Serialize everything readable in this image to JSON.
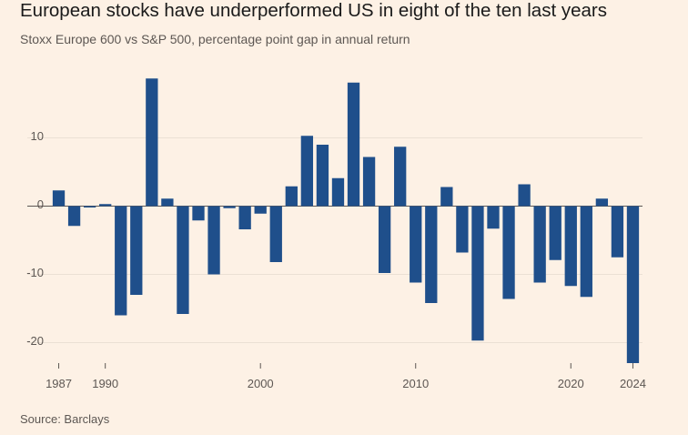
{
  "header": {
    "title": "European stocks have underperformed US in eight of the ten last years",
    "subtitle": "Stoxx Europe 600 vs S&P 500, percentage point gap in annual return"
  },
  "footer": {
    "source": "Source: Barclays"
  },
  "colors": {
    "bar": "#1f4f8b",
    "background": "#fdf1e5",
    "grid": "#ebe0d4",
    "text": "#5d5753"
  },
  "chart_data": {
    "type": "bar",
    "title": "European stocks have underperformed US in eight of the ten last years",
    "subtitle": "Stoxx Europe 600 vs S&P 500, percentage point gap in annual return",
    "xlabel": "",
    "ylabel": "",
    "ylim": [
      -23,
      19
    ],
    "yticks": [
      -20,
      -10,
      0,
      10
    ],
    "xtick_labels": [
      "1987",
      "1990",
      "2000",
      "2010",
      "2020",
      "2024"
    ],
    "grid": true,
    "categories": [
      1987,
      1988,
      1989,
      1990,
      1991,
      1992,
      1993,
      1994,
      1995,
      1996,
      1997,
      1998,
      1999,
      2000,
      2001,
      2002,
      2003,
      2004,
      2005,
      2006,
      2007,
      2008,
      2009,
      2010,
      2011,
      2012,
      2013,
      2014,
      2015,
      2016,
      2017,
      2018,
      2019,
      2020,
      2021,
      2022,
      2023,
      2024
    ],
    "values": [
      2.3,
      -2.9,
      -0.2,
      0.3,
      -16,
      -13,
      18.7,
      1.1,
      -15.8,
      -2.1,
      -10,
      -0.3,
      -3.4,
      -1.1,
      -8.2,
      2.9,
      10.3,
      9,
      4.1,
      18.1,
      7.2,
      -9.8,
      8.7,
      -11.2,
      -14.2,
      2.8,
      -6.8,
      -19.7,
      -3.3,
      -13.6,
      3.2,
      -11.2,
      -7.9,
      -11.7,
      -13.3,
      1.1,
      -7.5,
      -23
    ]
  }
}
